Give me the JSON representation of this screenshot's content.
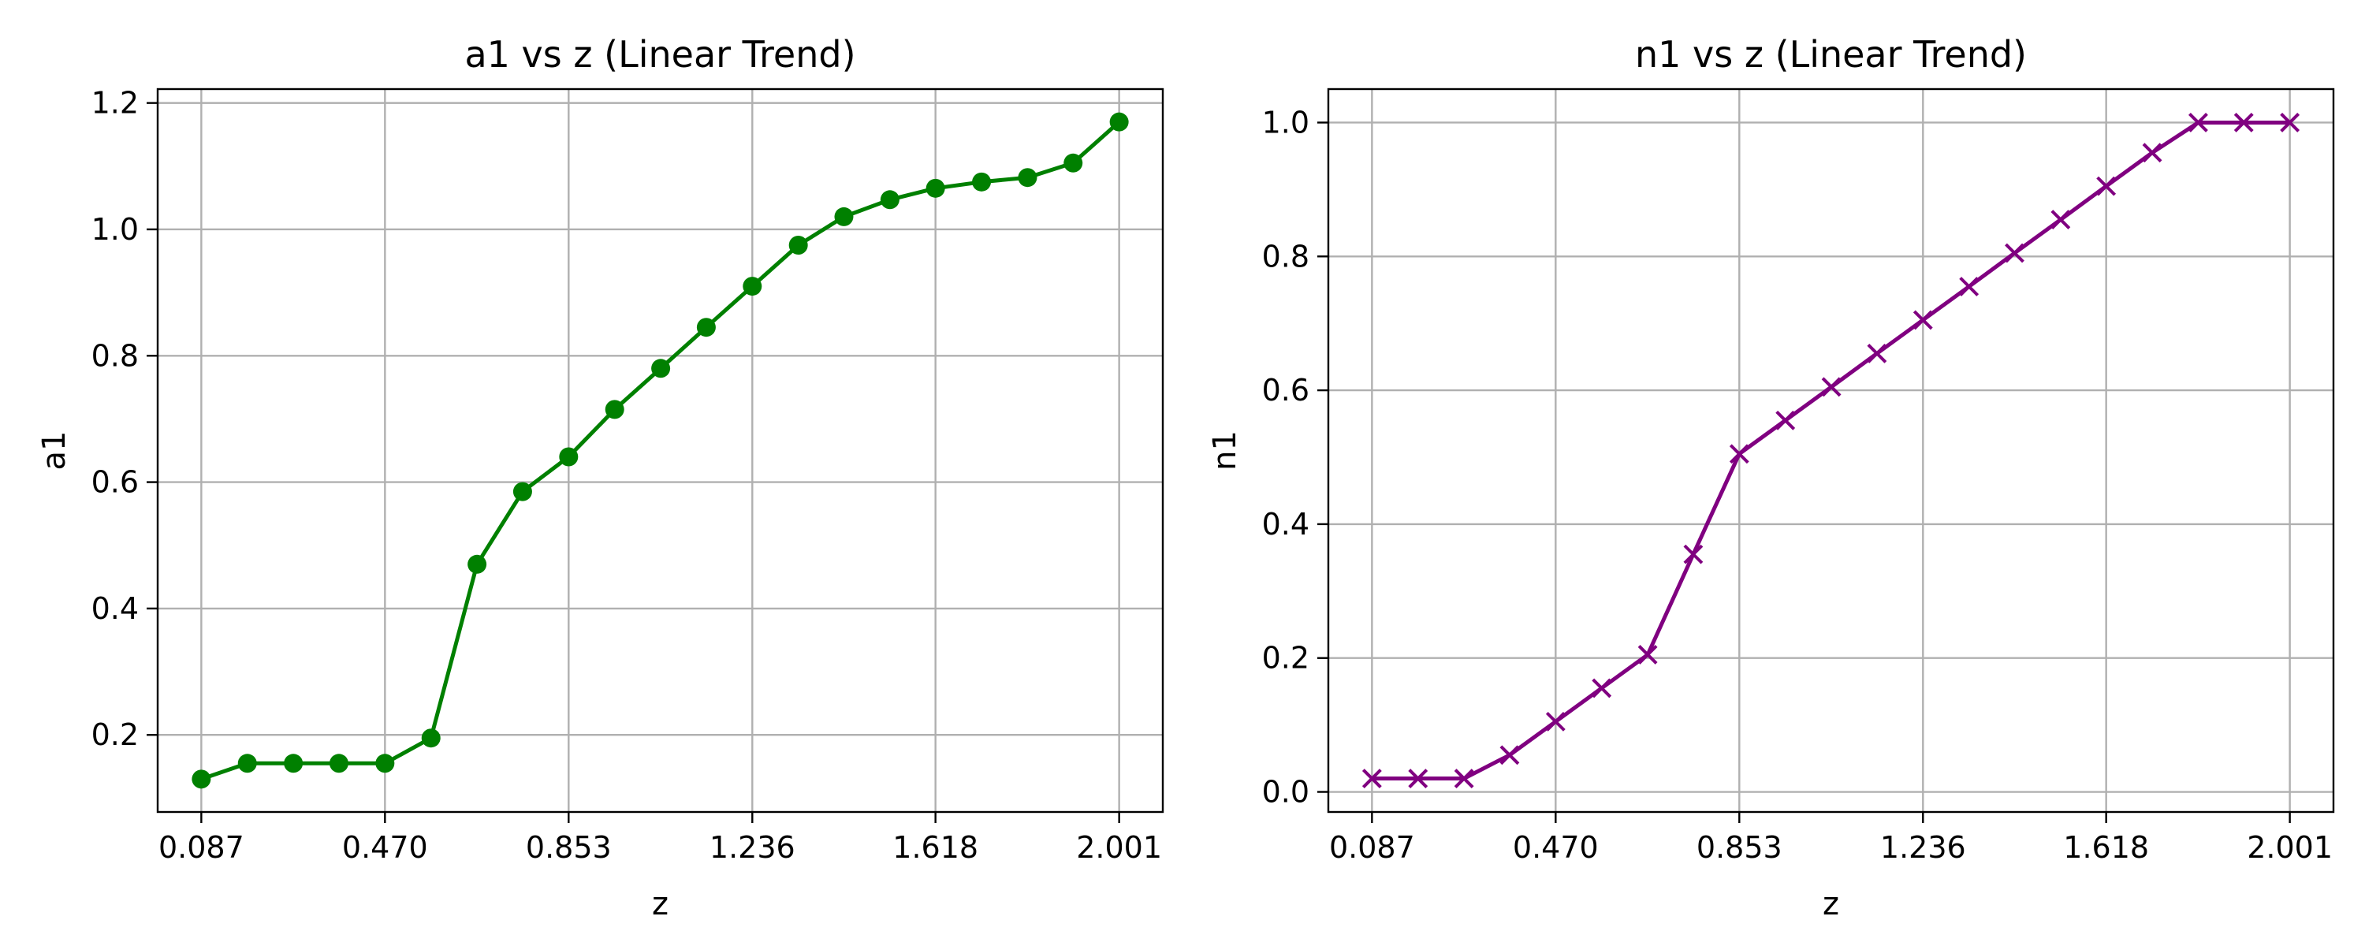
{
  "chart_data": [
    {
      "type": "line",
      "title": "a1 vs z (Linear Trend)",
      "xlabel": "z",
      "ylabel": "a1",
      "xlim": [
        -0.004,
        2.092
      ],
      "ylim": [
        0.078,
        1.222
      ],
      "xticks": [
        0.087,
        0.47,
        0.853,
        1.236,
        1.618,
        2.001
      ],
      "xtick_labels": [
        "0.087",
        "0.470",
        "0.853",
        "1.236",
        "1.618",
        "2.001"
      ],
      "yticks": [
        0.2,
        0.4,
        0.6,
        0.8,
        1.0,
        1.2
      ],
      "ytick_labels": [
        "0.2",
        "0.4",
        "0.6",
        "0.8",
        "1.0",
        "1.2"
      ],
      "grid": true,
      "series": [
        {
          "color": "#008000",
          "marker": "circle",
          "x": [
            0.087,
            0.183,
            0.279,
            0.374,
            0.47,
            0.566,
            0.662,
            0.757,
            0.853,
            0.949,
            1.045,
            1.14,
            1.236,
            1.332,
            1.427,
            1.523,
            1.618,
            1.714,
            1.81,
            1.905,
            2.001
          ],
          "y": [
            0.13,
            0.155,
            0.155,
            0.155,
            0.155,
            0.195,
            0.47,
            0.585,
            0.64,
            0.715,
            0.78,
            0.845,
            0.91,
            0.975,
            1.02,
            1.047,
            1.065,
            1.075,
            1.082,
            1.105,
            1.17
          ]
        }
      ]
    },
    {
      "type": "line",
      "title": "n1 vs z (Linear Trend)",
      "xlabel": "z",
      "ylabel": "n1",
      "xlim": [
        -0.004,
        2.092
      ],
      "ylim": [
        -0.03,
        1.05
      ],
      "xticks": [
        0.087,
        0.47,
        0.853,
        1.236,
        1.618,
        2.001
      ],
      "xtick_labels": [
        "0.087",
        "0.470",
        "0.853",
        "1.236",
        "1.618",
        "2.001"
      ],
      "yticks": [
        0.0,
        0.2,
        0.4,
        0.6,
        0.8,
        1.0
      ],
      "ytick_labels": [
        "0.0",
        "0.2",
        "0.4",
        "0.6",
        "0.8",
        "1.0"
      ],
      "grid": true,
      "series": [
        {
          "color": "#800080",
          "marker": "x",
          "x": [
            0.087,
            0.183,
            0.279,
            0.374,
            0.47,
            0.566,
            0.662,
            0.757,
            0.853,
            0.949,
            1.045,
            1.14,
            1.236,
            1.332,
            1.427,
            1.523,
            1.618,
            1.714,
            1.81,
            1.905,
            2.001
          ],
          "y": [
            0.02,
            0.02,
            0.02,
            0.055,
            0.105,
            0.155,
            0.205,
            0.355,
            0.505,
            0.555,
            0.605,
            0.655,
            0.705,
            0.755,
            0.805,
            0.855,
            0.905,
            0.955,
            1.0,
            1.0,
            1.0
          ]
        }
      ]
    }
  ]
}
